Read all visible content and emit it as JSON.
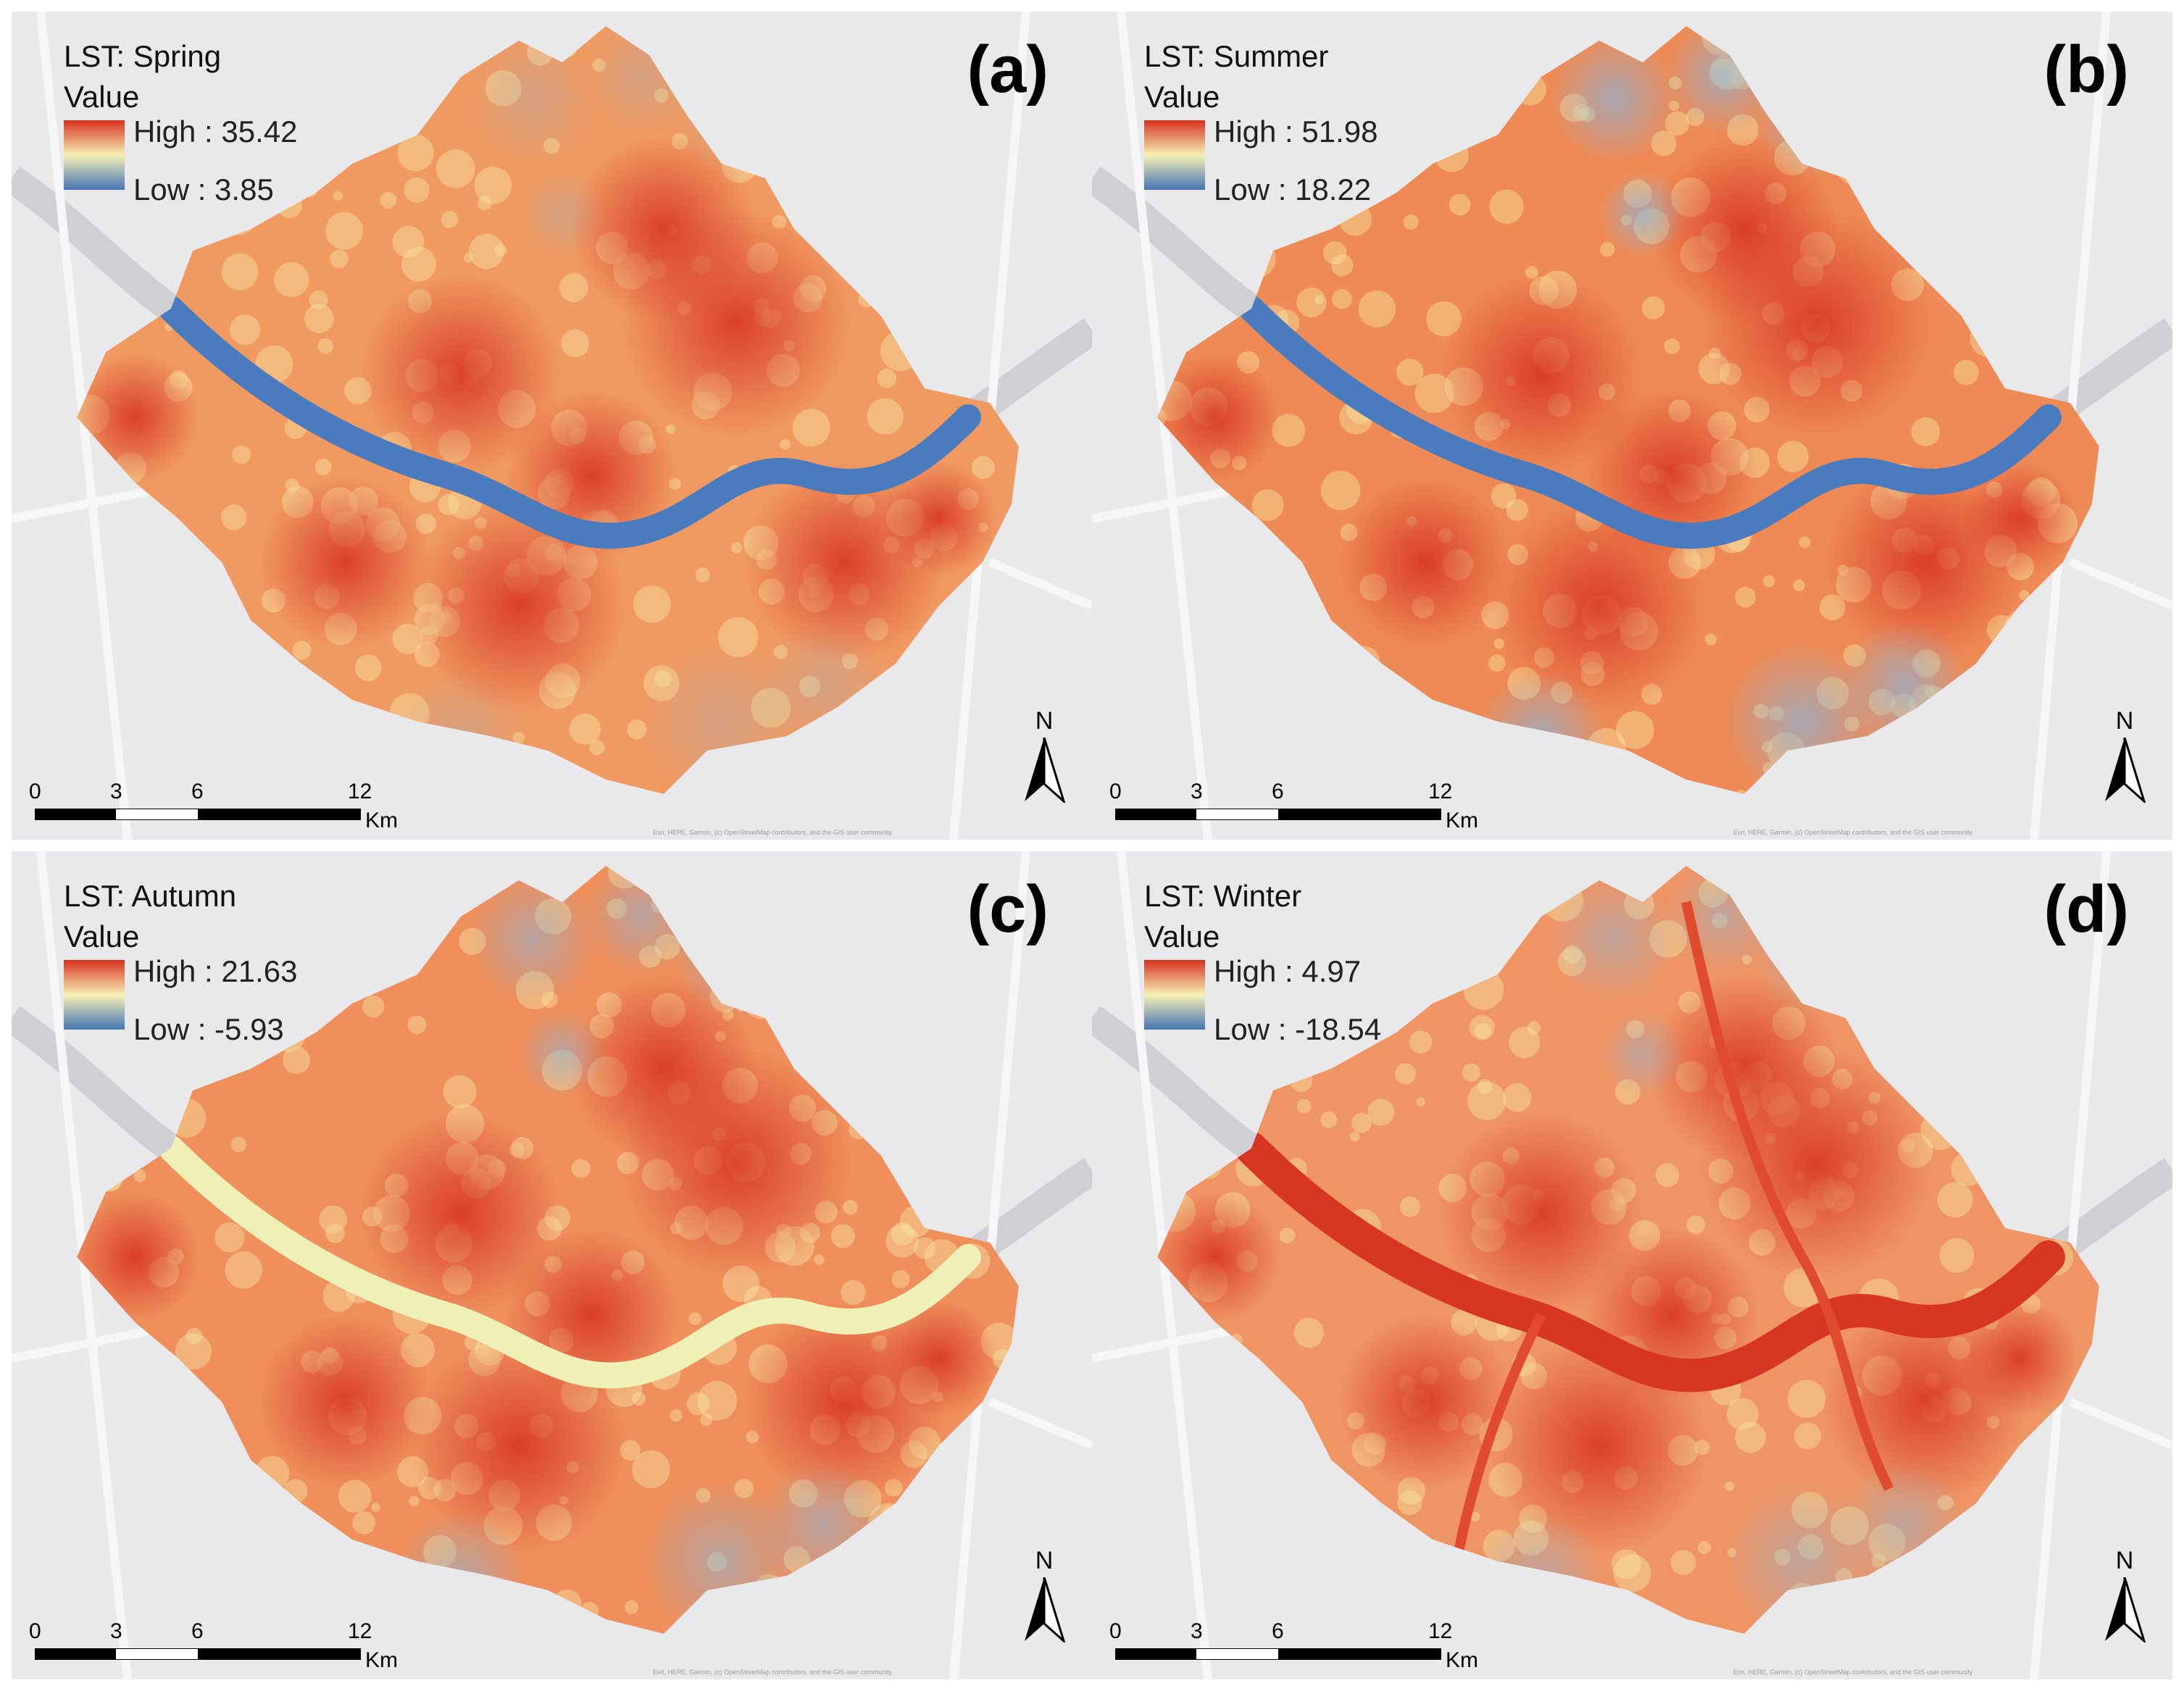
{
  "panels": [
    {
      "key": "a",
      "title": "LST: Spring",
      "value_label": "Value",
      "high": "High : 35.42",
      "low": "Low : 3.85",
      "label": "(a)",
      "river": "blue"
    },
    {
      "key": "b",
      "title": "LST: Summer",
      "value_label": "Value",
      "high": "High : 51.98",
      "low": "Low : 18.22",
      "label": "(b)",
      "river": "blue"
    },
    {
      "key": "c",
      "title": "LST: Autumn",
      "value_label": "Value",
      "high": "High : 21.63",
      "low": "Low : -5.93",
      "label": "(c)",
      "river": "yellow"
    },
    {
      "key": "d",
      "title": "LST: Winter",
      "value_label": "Value",
      "high": "High : 4.97",
      "low": "Low : -18.54",
      "label": "(d)",
      "river": "red"
    }
  ],
  "scale_bar": {
    "ticks": [
      "0",
      "3",
      "6",
      "12"
    ],
    "unit": "Km"
  },
  "north_letter": "N",
  "attribution": "Esri, HERE, Garmin, (c) OpenStreetMap contributors, and the GIS user community",
  "colors": {
    "background": "#e9e9eb",
    "high": "#d7301f",
    "mid": "#f7f0b4",
    "low": "#4575b4",
    "river_blue": "#4a7bbf",
    "river_yellow": "#eef0b6",
    "river_red": "#d83624",
    "city_fill": "#ef8a5a"
  }
}
